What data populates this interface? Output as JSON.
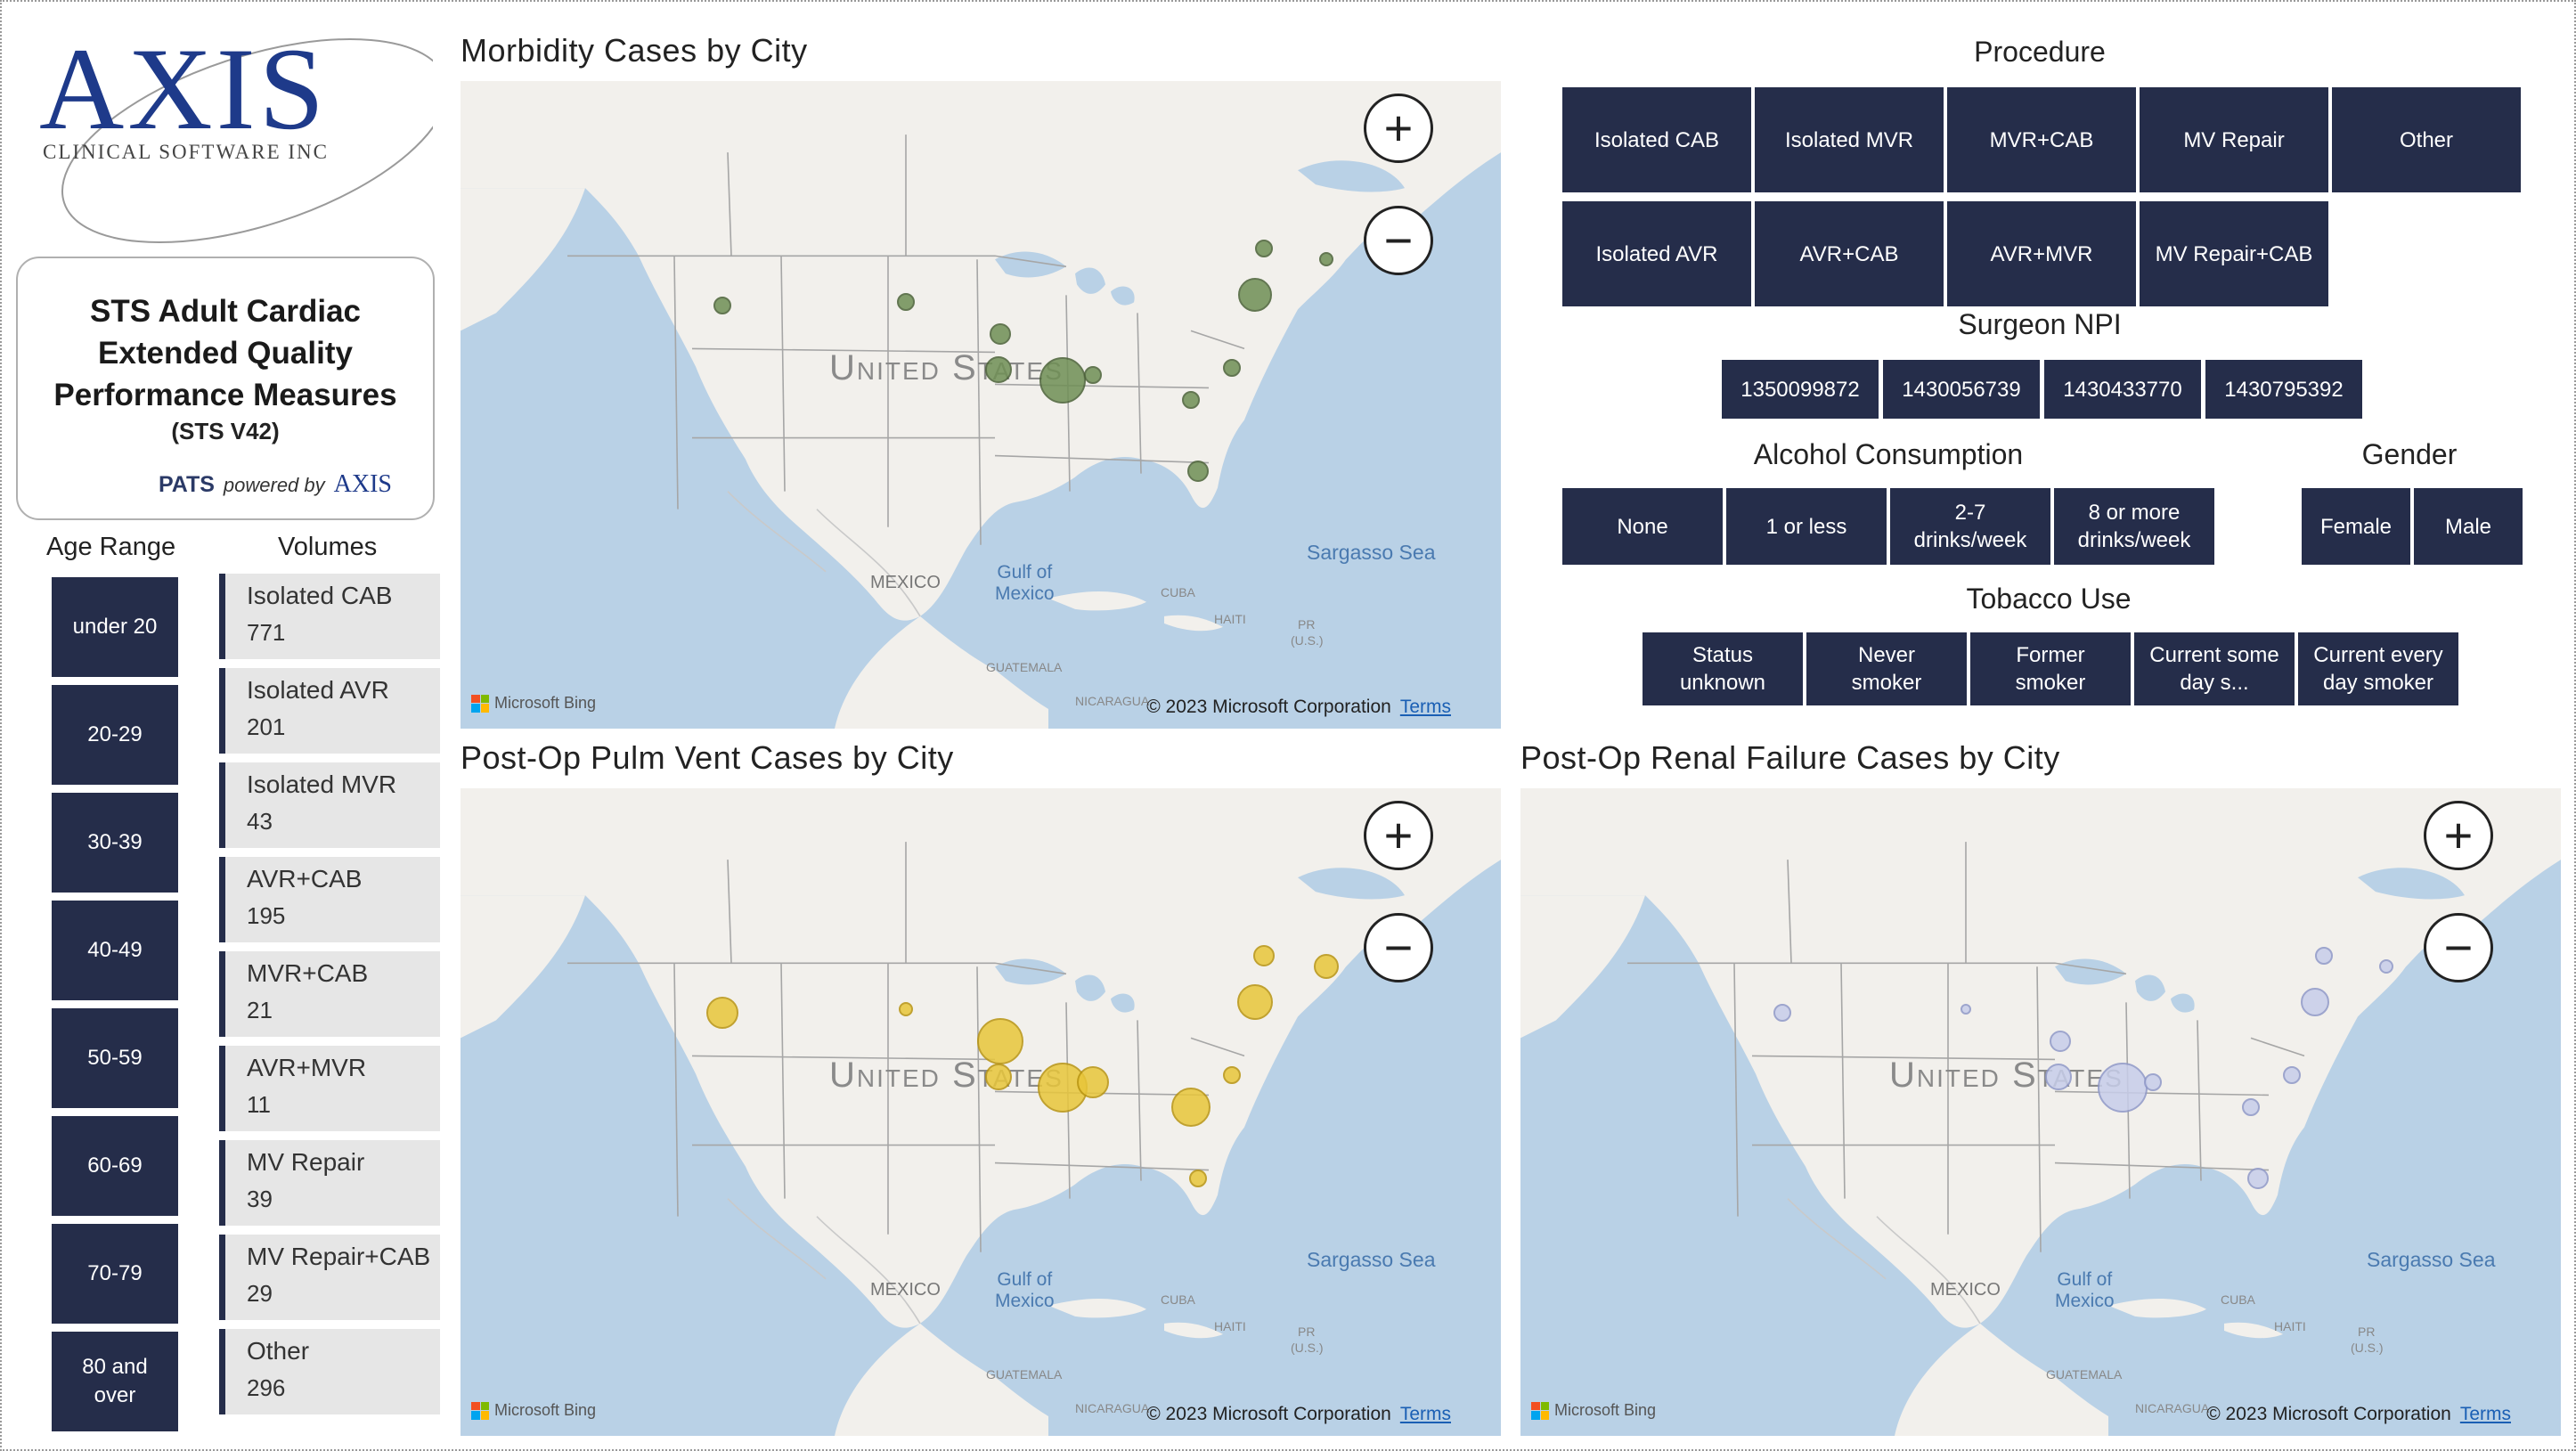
{
  "logo": {
    "text": "AXIS",
    "subtitle": "CLINICAL SOFTWARE INC"
  },
  "title_card": {
    "line1": "STS Adult Cardiac",
    "line2": "Extended Quality",
    "line3": "Performance Measures",
    "version": "(STS V42)",
    "pats": "PATS",
    "powered_by": "powered by",
    "powered_brand": "AXIS"
  },
  "age_range": {
    "header": "Age Range",
    "items": [
      "under 20",
      "20-29",
      "30-39",
      "40-49",
      "50-59",
      "60-69",
      "70-79",
      "80 and over"
    ]
  },
  "volumes": {
    "header": "Volumes",
    "items": [
      {
        "name": "Isolated CAB",
        "value": "771"
      },
      {
        "name": "Isolated AVR",
        "value": "201"
      },
      {
        "name": "Isolated MVR",
        "value": "43"
      },
      {
        "name": "AVR+CAB",
        "value": "195"
      },
      {
        "name": "MVR+CAB",
        "value": "21"
      },
      {
        "name": "AVR+MVR",
        "value": "11"
      },
      {
        "name": "MV Repair",
        "value": "39"
      },
      {
        "name": "MV Repair+CAB",
        "value": "29"
      },
      {
        "name": "Other",
        "value": "296"
      }
    ]
  },
  "map_common": {
    "zoom_in": "+",
    "zoom_out": "−",
    "bing": "Microsoft Bing",
    "copyright": "© 2023 Microsoft Corporation",
    "terms": "Terms",
    "label_us": "United States",
    "label_sea": "Sargasso Sea",
    "label_gulf_1": "Gulf of",
    "label_gulf_2": "Mexico",
    "label_mexico": "MEXICO",
    "label_cuba": "CUBA",
    "label_haiti": "HAITI",
    "label_pr": "PR",
    "label_pr2": "(U.S.)",
    "label_guatemala": "GUATEMALA",
    "label_nicaragua": "NICARAGUA"
  },
  "maps": {
    "morbidity": {
      "title": "Morbidity Cases by City",
      "bubble_color": "#6f8f55",
      "bubble_border": "#4a6136"
    },
    "pulm_vent": {
      "title": "Post-Op Pulm Vent Cases by City",
      "bubble_color": "#e8c63a",
      "bubble_border": "#b89410"
    },
    "renal": {
      "title": "Post-Op Renal Failure Cases by City",
      "bubble_color": "#c7cdea",
      "bubble_border": "#8f98c8"
    }
  },
  "procedure": {
    "header": "Procedure",
    "items": [
      "Isolated CAB",
      "Isolated MVR",
      "MVR+CAB",
      "MV Repair",
      "Other",
      "Isolated AVR",
      "AVR+CAB",
      "AVR+MVR",
      "MV Repair+CAB"
    ]
  },
  "surgeon_npi": {
    "header": "Surgeon NPI",
    "items": [
      "1350099872",
      "1430056739",
      "1430433770",
      "1430795392"
    ]
  },
  "alcohol": {
    "header": "Alcohol Consumption",
    "items": [
      "None",
      "1 or less",
      "2-7 drinks/week",
      "8 or more drinks/week"
    ]
  },
  "gender": {
    "header": "Gender",
    "items": [
      "Female",
      "Male"
    ]
  },
  "tobacco": {
    "header": "Tobacco Use",
    "items": [
      "Status unknown",
      "Never smoker",
      "Former smoker",
      "Current some day s...",
      "Current every day smoker"
    ]
  },
  "colors": {
    "slicer_bg": "#252d4a",
    "map_water": "#b9d1e6",
    "map_land": "#f2f0ec"
  }
}
